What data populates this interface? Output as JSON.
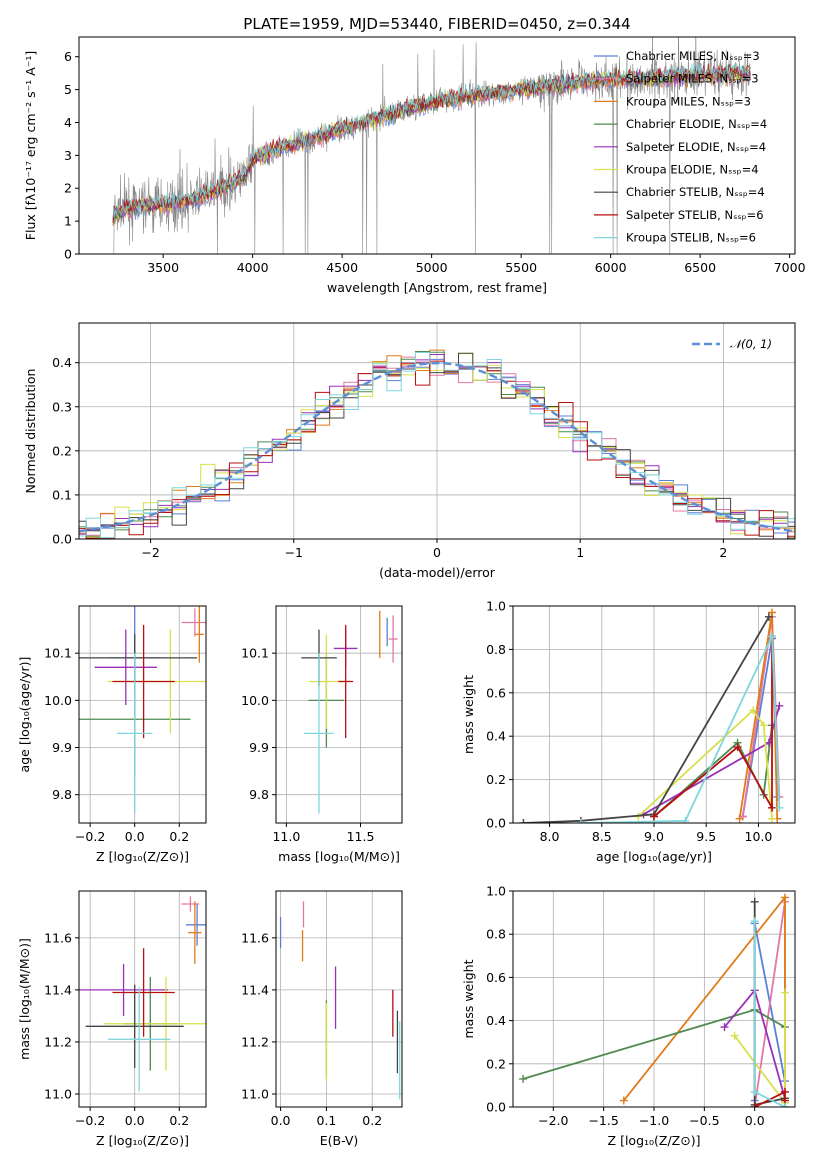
{
  "colors": [
    "#5b7fd9",
    "#e377a6",
    "#e07b18",
    "#4e8a4e",
    "#9b30b8",
    "#d7e04a",
    "#444444",
    "#b80f0f",
    "#7fd6dd"
  ],
  "chart_data": [
    {
      "id": "spectrum",
      "type": "line",
      "title": "PLATE=1959, MJD=53440, FIBERID=0450, z=0.344",
      "xlabel": "wavelength [Angstrom, rest frame]",
      "ylabel": "Flux [fλ10⁻¹⁷ erg cm⁻² s⁻¹ A⁻¹]",
      "xlim": [
        3030,
        7030
      ],
      "ylim": [
        0,
        6.6
      ],
      "xticks": [
        "3500",
        "4000",
        "4500",
        "5000",
        "5500",
        "6000",
        "6500",
        "7000"
      ],
      "yticks": [
        "0",
        "1",
        "2",
        "3",
        "4",
        "5",
        "6"
      ],
      "data_color": "#888888",
      "legend_placement": "right",
      "continuum": {
        "x": [
          3220,
          3300,
          3500,
          3700,
          3950,
          4000,
          4200,
          4500,
          4800,
          5000,
          5200,
          5500,
          5800,
          6000,
          6300,
          6500,
          6780
        ],
        "y": [
          1.2,
          1.4,
          1.5,
          1.7,
          2.3,
          2.9,
          3.3,
          3.8,
          4.3,
          4.6,
          4.8,
          5.0,
          5.2,
          5.3,
          5.35,
          5.45,
          5.5
        ]
      },
      "legend": [
        "Chabrier MILES, Nₛₛₚ=3",
        "Salpeter MILES, Nₛₛₚ=3",
        "Kroupa MILES, Nₛₛₚ=3",
        "Chabrier ELODIE, Nₛₛₚ=4",
        "Salpeter ELODIE, Nₛₛₚ=4",
        "Kroupa ELODIE, Nₛₛₚ=4",
        "Chabrier STELIB, Nₛₛₚ=4",
        "Salpeter STELIB, Nₛₛₚ=6",
        "Kroupa STELIB, Nₛₛₚ=6"
      ]
    },
    {
      "id": "residuals",
      "type": "bar",
      "xlabel": "(data-model)/error",
      "ylabel": "Normed distribution",
      "xlim": [
        -2.5,
        2.5
      ],
      "ylim": [
        0,
        0.49
      ],
      "xticks": [
        "−2",
        "−1",
        "0",
        "1",
        "2"
      ],
      "yticks": [
        "0.0",
        "0.1",
        "0.2",
        "0.3",
        "0.4"
      ],
      "bin_width": 0.1,
      "legend": [
        "𝒩(0, 1)"
      ],
      "reference": {
        "name": "𝒩(0, 1)",
        "mean": 0,
        "sigma": 1,
        "color": "#5b8fd6"
      }
    },
    {
      "id": "age_vs_Z",
      "type": "scatter",
      "xlabel": "Z [log₁₀(Z/Z⊙)]",
      "ylabel": "age  [log₁₀(age/yr)]",
      "xlim": [
        -0.25,
        0.32
      ],
      "ylim": [
        9.74,
        10.2
      ],
      "xticks": [
        "−0.2",
        "0.0",
        "0.2"
      ],
      "yticks": [
        "9.8",
        "9.9",
        "10.0",
        "10.1"
      ],
      "points": [
        {
          "x": 0.0,
          "y": 10.09,
          "xerr": 0.12,
          "yerr": 0.13
        },
        {
          "x": 0.27,
          "y": 10.165,
          "xerr": 0.06,
          "yerr": 0.03
        },
        {
          "x": 0.29,
          "y": 10.14,
          "xerr": 0.02,
          "yerr": 0.06
        },
        {
          "x": 0.0,
          "y": 9.96,
          "xerr": 0.25,
          "yerr": 0.12
        },
        {
          "x": -0.04,
          "y": 10.07,
          "xerr": 0.14,
          "yerr": 0.08
        },
        {
          "x": 0.16,
          "y": 10.04,
          "xerr": 0.28,
          "yerr": 0.11
        },
        {
          "x": 0.0,
          "y": 10.09,
          "xerr": 0.28,
          "yerr": 0.05
        },
        {
          "x": 0.04,
          "y": 10.04,
          "xerr": 0.14,
          "yerr": 0.12
        },
        {
          "x": 0.0,
          "y": 9.93,
          "xerr": 0.08,
          "yerr": 0.17
        }
      ]
    },
    {
      "id": "age_vs_mass",
      "type": "scatter",
      "xlabel": "mass [log₁₀(M/M⊙)]",
      "xlim": [
        10.93,
        11.78
      ],
      "ylim": [
        9.74,
        10.2
      ],
      "xticks": [
        "11.0",
        "11.5"
      ],
      "yticks": [
        "9.8",
        "9.9",
        "10.0",
        "10.1"
      ],
      "points": [
        {
          "x": 11.68,
          "y": 10.145,
          "xerr": 0.0,
          "yerr": 0.03
        },
        {
          "x": 11.72,
          "y": 10.13,
          "xerr": 0.03,
          "yerr": 0.05
        },
        {
          "x": 11.63,
          "y": 10.14,
          "xerr": 0.0,
          "yerr": 0.05
        },
        {
          "x": 11.27,
          "y": 10.0,
          "xerr": 0.12,
          "yerr": 0.1
        },
        {
          "x": 11.4,
          "y": 10.11,
          "xerr": 0.08,
          "yerr": 0.04
        },
        {
          "x": 11.27,
          "y": 10.04,
          "xerr": 0.12,
          "yerr": 0.1
        },
        {
          "x": 11.22,
          "y": 10.09,
          "xerr": 0.12,
          "yerr": 0.06
        },
        {
          "x": 11.4,
          "y": 10.04,
          "xerr": 0.05,
          "yerr": 0.12
        },
        {
          "x": 11.22,
          "y": 9.93,
          "xerr": 0.1,
          "yerr": 0.17
        }
      ]
    },
    {
      "id": "weight_vs_age",
      "type": "line",
      "xlabel": "age  [log₁₀(age/yr)]",
      "ylabel": "mass weight",
      "xlim": [
        7.65,
        10.35
      ],
      "ylim": [
        0,
        1.0
      ],
      "xticks": [
        "8.0",
        "8.5",
        "9.0",
        "9.5",
        "10.0"
      ],
      "yticks": [
        "0.0",
        "0.2",
        "0.4",
        "0.6",
        "0.8",
        "1.0"
      ],
      "series": [
        {
          "x": [
            9.85,
            10.13,
            10.18
          ],
          "y": [
            0.03,
            0.85,
            0.12
          ]
        },
        {
          "x": [
            9.85,
            10.13,
            10.2
          ],
          "y": [
            0.03,
            0.95,
            0.12
          ]
        },
        {
          "x": [
            9.82,
            10.13,
            10.18
          ],
          "y": [
            0.02,
            0.97,
            0.02
          ]
        },
        {
          "x": [
            9.0,
            9.8,
            10.05,
            10.13
          ],
          "y": [
            0.03,
            0.37,
            0.13,
            0.45
          ]
        },
        {
          "x": [
            8.9,
            10.1,
            10.2
          ],
          "y": [
            0.04,
            0.37,
            0.54
          ]
        },
        {
          "x": [
            8.85,
            9.95,
            10.05,
            10.13
          ],
          "y": [
            0.03,
            0.52,
            0.45,
            0.02
          ]
        },
        {
          "x": [
            7.75,
            8.3,
            9.0,
            10.1
          ],
          "y": [
            0.0,
            0.01,
            0.04,
            0.95
          ]
        },
        {
          "x": [
            9.0,
            9.8,
            10.13,
            10.13
          ],
          "y": [
            0.03,
            0.35,
            0.07,
            0.86
          ]
        },
        {
          "x": [
            8.3,
            9.3,
            10.13,
            10.2
          ],
          "y": [
            0.0,
            0.01,
            0.86,
            0.07
          ]
        }
      ]
    },
    {
      "id": "mass_vs_Z",
      "type": "scatter",
      "xlabel": "Z [log₁₀(Z/Z⊙)]",
      "ylabel": "mass [log₁₀(M/M⊙)]",
      "xlim": [
        -0.25,
        0.32
      ],
      "ylim": [
        10.95,
        11.78
      ],
      "xticks": [
        "−0.2",
        "0.0",
        "0.2"
      ],
      "yticks": [
        "11.0",
        "11.2",
        "11.4",
        "11.6"
      ],
      "points": [
        {
          "x": 0.28,
          "y": 11.65,
          "xerr": 0.05,
          "yerr": 0.08
        },
        {
          "x": 0.25,
          "y": 11.73,
          "xerr": 0.04,
          "yerr": 0.03
        },
        {
          "x": 0.27,
          "y": 11.62,
          "xerr": 0.03,
          "yerr": 0.12
        },
        {
          "x": 0.07,
          "y": 11.27,
          "xerr": 0.12,
          "yerr": 0.18
        },
        {
          "x": -0.05,
          "y": 11.4,
          "xerr": 0.2,
          "yerr": 0.1
        },
        {
          "x": 0.14,
          "y": 11.27,
          "xerr": 0.28,
          "yerr": 0.18
        },
        {
          "x": 0.0,
          "y": 11.26,
          "xerr": 0.22,
          "yerr": 0.16
        },
        {
          "x": 0.04,
          "y": 11.39,
          "xerr": 0.14,
          "yerr": 0.17
        },
        {
          "x": 0.02,
          "y": 11.21,
          "xerr": 0.14,
          "yerr": 0.2
        }
      ]
    },
    {
      "id": "mass_vs_ebv",
      "type": "scatter",
      "xlabel": "E(B-V)",
      "xlim": [
        -0.01,
        0.265
      ],
      "ylim": [
        10.95,
        11.78
      ],
      "xticks": [
        "0.0",
        "0.1",
        "0.2"
      ],
      "yticks": [
        "11.0",
        "11.2",
        "11.4",
        "11.6"
      ],
      "points": [
        {
          "x": 0.0,
          "y": 11.62,
          "xerr": 0.0,
          "yerr": 0.06
        },
        {
          "x": 0.05,
          "y": 11.69,
          "xerr": 0.0,
          "yerr": 0.05
        },
        {
          "x": 0.048,
          "y": 11.57,
          "xerr": 0.0,
          "yerr": 0.06
        },
        {
          "x": 0.1,
          "y": 11.21,
          "xerr": 0.0,
          "yerr": 0.15
        },
        {
          "x": 0.12,
          "y": 11.37,
          "xerr": 0.0,
          "yerr": 0.12
        },
        {
          "x": 0.1,
          "y": 11.2,
          "xerr": 0.0,
          "yerr": 0.15
        },
        {
          "x": 0.255,
          "y": 11.2,
          "xerr": 0.0,
          "yerr": 0.12
        },
        {
          "x": 0.245,
          "y": 11.31,
          "xerr": 0.0,
          "yerr": 0.09
        },
        {
          "x": 0.26,
          "y": 11.13,
          "xerr": 0.0,
          "yerr": 0.15
        }
      ]
    },
    {
      "id": "weight_vs_Z",
      "type": "line",
      "xlabel": "Z [log₁₀(Z/Z⊙)]",
      "ylabel": "mass weight",
      "xlim": [
        -2.4,
        0.4
      ],
      "ylim": [
        0,
        1.0
      ],
      "xticks": [
        "−2.0",
        "−1.5",
        "−1.0",
        "−0.5",
        "0.0"
      ],
      "yticks": [
        "0.0",
        "0.2",
        "0.4",
        "0.6",
        "0.8",
        "1.0"
      ],
      "series": [
        {
          "x": [
            0.0,
            0.0,
            0.3
          ],
          "y": [
            0.03,
            0.85,
            0.12
          ]
        },
        {
          "x": [
            0.0,
            0.3,
            0.3
          ],
          "y": [
            0.0,
            0.95,
            0.02
          ]
        },
        {
          "x": [
            -1.3,
            0.3,
            0.3
          ],
          "y": [
            0.03,
            0.97,
            0.0
          ]
        },
        {
          "x": [
            -2.3,
            0.0,
            0.3
          ],
          "y": [
            0.13,
            0.45,
            0.37
          ]
        },
        {
          "x": [
            -0.3,
            0.0,
            0.3
          ],
          "y": [
            0.37,
            0.54,
            0.04
          ]
        },
        {
          "x": [
            -0.2,
            0.3,
            0.3
          ],
          "y": [
            0.33,
            0.02,
            0.53
          ]
        },
        {
          "x": [
            0.0,
            0.0,
            0.3
          ],
          "y": [
            0.95,
            0.01,
            0.04
          ]
        },
        {
          "x": [
            0.0,
            0.3,
            0.3
          ],
          "y": [
            0.0,
            0.07,
            0.03
          ]
        },
        {
          "x": [
            0.0,
            0.0,
            0.3
          ],
          "y": [
            0.86,
            0.07,
            0.0
          ]
        }
      ]
    }
  ]
}
